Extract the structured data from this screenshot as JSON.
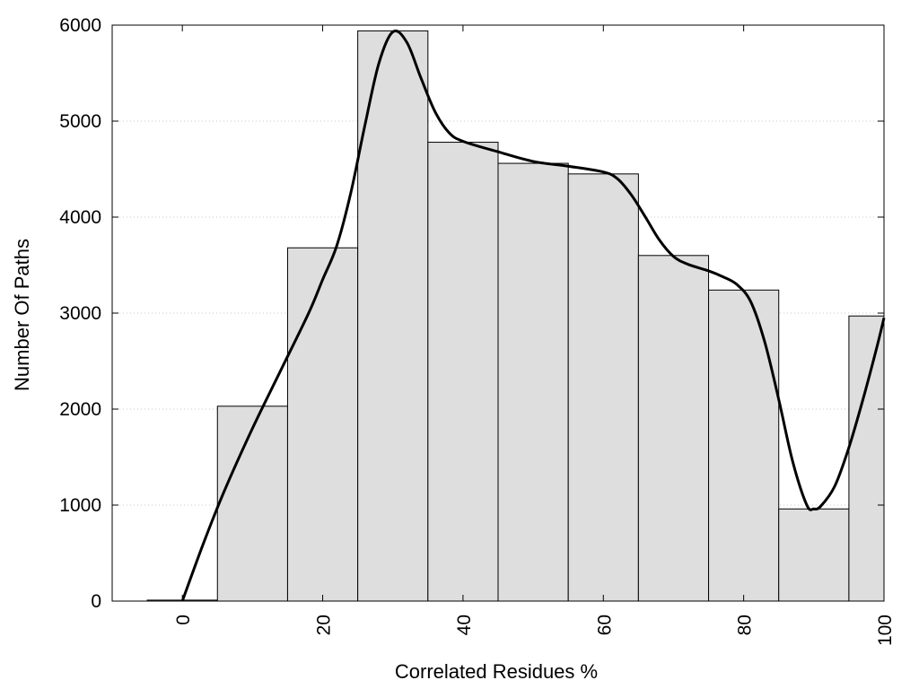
{
  "chart_data": {
    "type": "bar",
    "xlabel": "Correlated Residues %",
    "ylabel": "Number Of Paths",
    "xlim": [
      -10,
      100
    ],
    "ylim": [
      0,
      6000
    ],
    "grid": true,
    "bin_width": 10,
    "bars": [
      {
        "x": 0,
        "value": 10
      },
      {
        "x": 10,
        "value": 2030
      },
      {
        "x": 20,
        "value": 3680
      },
      {
        "x": 30,
        "value": 5940
      },
      {
        "x": 40,
        "value": 4780
      },
      {
        "x": 50,
        "value": 4560
      },
      {
        "x": 60,
        "value": 4450
      },
      {
        "x": 70,
        "value": 3600
      },
      {
        "x": 80,
        "value": 3240
      },
      {
        "x": 90,
        "value": 960
      },
      {
        "x": 100,
        "value": 2970
      }
    ],
    "curve": [
      [
        0,
        0
      ],
      [
        3,
        600
      ],
      [
        6,
        1150
      ],
      [
        10,
        1800
      ],
      [
        14,
        2400
      ],
      [
        18,
        3000
      ],
      [
        20,
        3350
      ],
      [
        22,
        3700
      ],
      [
        24,
        4250
      ],
      [
        26,
        4950
      ],
      [
        28,
        5600
      ],
      [
        30,
        5930
      ],
      [
        32,
        5820
      ],
      [
        34,
        5450
      ],
      [
        36,
        5100
      ],
      [
        38,
        4880
      ],
      [
        40,
        4790
      ],
      [
        45,
        4680
      ],
      [
        50,
        4580
      ],
      [
        55,
        4530
      ],
      [
        60,
        4470
      ],
      [
        62,
        4400
      ],
      [
        64,
        4230
      ],
      [
        66,
        4000
      ],
      [
        68,
        3760
      ],
      [
        70,
        3590
      ],
      [
        72,
        3510
      ],
      [
        75,
        3440
      ],
      [
        77,
        3380
      ],
      [
        79,
        3300
      ],
      [
        81,
        3120
      ],
      [
        83,
        2700
      ],
      [
        85,
        2100
      ],
      [
        87,
        1450
      ],
      [
        89,
        1000
      ],
      [
        90,
        960
      ],
      [
        91,
        990
      ],
      [
        93,
        1200
      ],
      [
        95,
        1600
      ],
      [
        97,
        2100
      ],
      [
        99,
        2650
      ],
      [
        100,
        2950
      ]
    ],
    "xticks": [
      0,
      20,
      40,
      60,
      80,
      100
    ],
    "yticks": [
      0,
      1000,
      2000,
      3000,
      4000,
      5000,
      6000
    ]
  }
}
